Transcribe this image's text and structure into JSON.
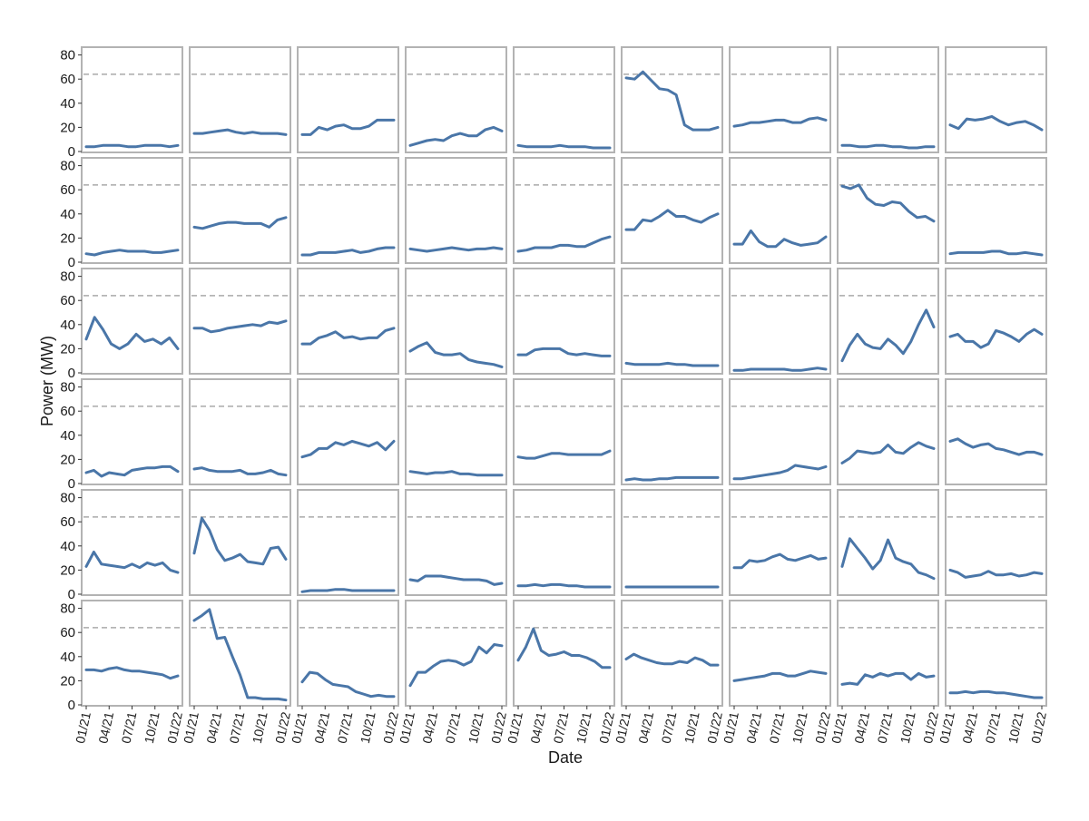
{
  "chart_data": {
    "type": "line",
    "layout": "small-multiples",
    "rows": 6,
    "cols": 9,
    "xlabel": "Date",
    "ylabel": "Power (MW)",
    "ylim": [
      0,
      82
    ],
    "yticks": [
      "0",
      "20",
      "40",
      "60",
      "80"
    ],
    "xticks": [
      "01/21",
      "04/21",
      "07/21",
      "10/21",
      "01/22"
    ],
    "xtick_months": [
      0,
      3,
      6,
      9,
      12
    ],
    "x_months": [
      0,
      1,
      2,
      3,
      4,
      5,
      6,
      7,
      8,
      9,
      10,
      11
    ],
    "reference_line": 64,
    "grid": false,
    "colors": {
      "line": "#4a76a8",
      "reference": "#aaaaaa",
      "frame": "#b3b3b3"
    },
    "panels": [
      [
        4,
        4,
        5,
        5,
        5,
        4,
        4,
        5,
        5,
        5,
        4,
        5
      ],
      [
        15,
        15,
        16,
        17,
        18,
        16,
        15,
        16,
        15,
        15,
        15,
        14
      ],
      [
        14,
        14,
        20,
        18,
        21,
        22,
        19,
        19,
        21,
        26,
        26,
        26
      ],
      [
        5,
        7,
        9,
        10,
        9,
        13,
        15,
        13,
        13,
        18,
        20,
        17
      ],
      [
        5,
        4,
        4,
        4,
        4,
        5,
        4,
        4,
        4,
        3,
        3,
        3
      ],
      [
        61,
        60,
        66,
        59,
        52,
        51,
        47,
        22,
        18,
        18,
        18,
        20
      ],
      [
        21,
        22,
        24,
        24,
        25,
        26,
        26,
        24,
        24,
        27,
        28,
        26
      ],
      [
        5,
        5,
        4,
        4,
        5,
        5,
        4,
        4,
        3,
        3,
        4,
        4
      ],
      [
        22,
        19,
        27,
        26,
        27,
        29,
        25,
        22,
        24,
        25,
        22,
        18
      ],
      [
        7,
        6,
        8,
        9,
        10,
        9,
        9,
        9,
        8,
        8,
        9,
        10
      ],
      [
        29,
        28,
        30,
        32,
        33,
        33,
        32,
        32,
        32,
        29,
        35,
        37
      ],
      [
        6,
        6,
        8,
        8,
        8,
        9,
        10,
        8,
        9,
        11,
        12,
        12
      ],
      [
        11,
        10,
        9,
        10,
        11,
        12,
        11,
        10,
        11,
        11,
        12,
        11
      ],
      [
        9,
        10,
        12,
        12,
        12,
        14,
        14,
        13,
        13,
        16,
        19,
        21
      ],
      [
        27,
        27,
        35,
        34,
        38,
        43,
        38,
        38,
        35,
        33,
        37,
        40
      ],
      [
        15,
        15,
        26,
        17,
        13,
        13,
        19,
        16,
        14,
        15,
        16,
        21
      ],
      [
        63,
        61,
        64,
        53,
        48,
        47,
        50,
        49,
        42,
        37,
        38,
        34
      ],
      [
        7,
        8,
        8,
        8,
        8,
        9,
        9,
        7,
        7,
        8,
        7,
        6
      ],
      [
        28,
        46,
        36,
        24,
        20,
        24,
        32,
        26,
        28,
        24,
        29,
        20
      ],
      [
        37,
        37,
        34,
        35,
        37,
        38,
        39,
        40,
        39,
        42,
        41,
        43
      ],
      [
        24,
        24,
        29,
        31,
        34,
        29,
        30,
        28,
        29,
        29,
        35,
        37
      ],
      [
        18,
        22,
        25,
        17,
        15,
        15,
        16,
        11,
        9,
        8,
        7,
        5
      ],
      [
        15,
        15,
        19,
        20,
        20,
        20,
        16,
        15,
        16,
        15,
        14,
        14
      ],
      [
        8,
        7,
        7,
        7,
        7,
        8,
        7,
        7,
        6,
        6,
        6,
        6
      ],
      [
        2,
        2,
        3,
        3,
        3,
        3,
        3,
        2,
        2,
        3,
        4,
        3
      ],
      [
        10,
        23,
        32,
        24,
        21,
        20,
        28,
        23,
        16,
        26,
        40,
        52,
        38
      ],
      [
        30,
        32,
        26,
        26,
        21,
        24,
        35,
        33,
        30,
        26,
        32,
        36,
        32
      ],
      [
        9,
        11,
        6,
        9,
        8,
        7,
        11,
        12,
        13,
        13,
        14,
        14,
        10
      ],
      [
        12,
        13,
        11,
        10,
        10,
        10,
        11,
        8,
        8,
        9,
        11,
        8,
        7
      ],
      [
        22,
        24,
        29,
        29,
        34,
        32,
        35,
        33,
        31,
        34,
        28,
        35
      ],
      [
        10,
        9,
        8,
        9,
        9,
        10,
        8,
        8,
        7,
        7,
        7,
        7
      ],
      [
        22,
        21,
        21,
        23,
        25,
        25,
        24,
        24,
        24,
        24,
        24,
        27
      ],
      [
        3,
        4,
        3,
        3,
        4,
        4,
        5,
        5,
        5,
        5,
        5,
        5
      ],
      [
        4,
        4,
        5,
        6,
        7,
        8,
        9,
        11,
        15,
        14,
        13,
        12,
        14
      ],
      [
        17,
        21,
        27,
        26,
        25,
        26,
        32,
        26,
        25,
        30,
        34,
        31,
        29
      ],
      [
        35,
        37,
        33,
        30,
        32,
        33,
        29,
        28,
        26,
        24,
        26,
        26,
        24
      ],
      [
        23,
        35,
        25,
        24,
        23,
        22,
        25,
        22,
        26,
        24,
        26,
        20,
        18
      ],
      [
        34,
        63,
        53,
        37,
        28,
        30,
        33,
        27,
        26,
        25,
        38,
        39,
        29
      ],
      [
        2,
        3,
        3,
        3,
        4,
        4,
        3,
        3,
        3,
        3,
        3,
        3
      ],
      [
        12,
        11,
        15,
        15,
        15,
        14,
        13,
        12,
        12,
        12,
        11,
        8,
        9
      ],
      [
        7,
        7,
        8,
        7,
        8,
        8,
        7,
        7,
        6,
        6,
        6,
        6
      ],
      [
        6,
        6,
        6,
        6,
        6,
        6,
        6,
        6,
        6,
        6,
        6,
        6
      ],
      [
        22,
        22,
        28,
        27,
        28,
        31,
        33,
        29,
        28,
        30,
        32,
        29,
        30
      ],
      [
        23,
        46,
        38,
        30,
        21,
        28,
        45,
        30,
        27,
        25,
        18,
        16,
        13
      ],
      [
        20,
        18,
        14,
        15,
        16,
        19,
        16,
        16,
        17,
        15,
        16,
        18,
        17
      ],
      [
        29,
        29,
        28,
        30,
        31,
        29,
        28,
        28,
        27,
        26,
        25,
        22,
        24
      ],
      [
        70,
        74,
        79,
        55,
        56,
        40,
        25,
        6,
        6,
        5,
        5,
        5,
        4
      ],
      [
        19,
        27,
        26,
        21,
        17,
        16,
        15,
        11,
        9,
        7,
        8,
        7,
        7
      ],
      [
        16,
        27,
        27,
        32,
        36,
        37,
        36,
        33,
        36,
        48,
        43,
        50,
        49
      ],
      [
        37,
        48,
        63,
        45,
        41,
        42,
        44,
        41,
        41,
        39,
        36,
        31,
        31
      ],
      [
        38,
        42,
        39,
        37,
        35,
        34,
        34,
        36,
        35,
        39,
        37,
        33,
        33
      ],
      [
        20,
        21,
        22,
        23,
        24,
        26,
        26,
        24,
        24,
        26,
        28,
        27,
        26
      ],
      [
        17,
        18,
        17,
        25,
        23,
        26,
        24,
        26,
        26,
        21,
        26,
        23,
        24
      ],
      [
        10,
        10,
        11,
        10,
        11,
        11,
        10,
        10,
        9,
        8,
        7,
        6,
        6
      ]
    ]
  }
}
